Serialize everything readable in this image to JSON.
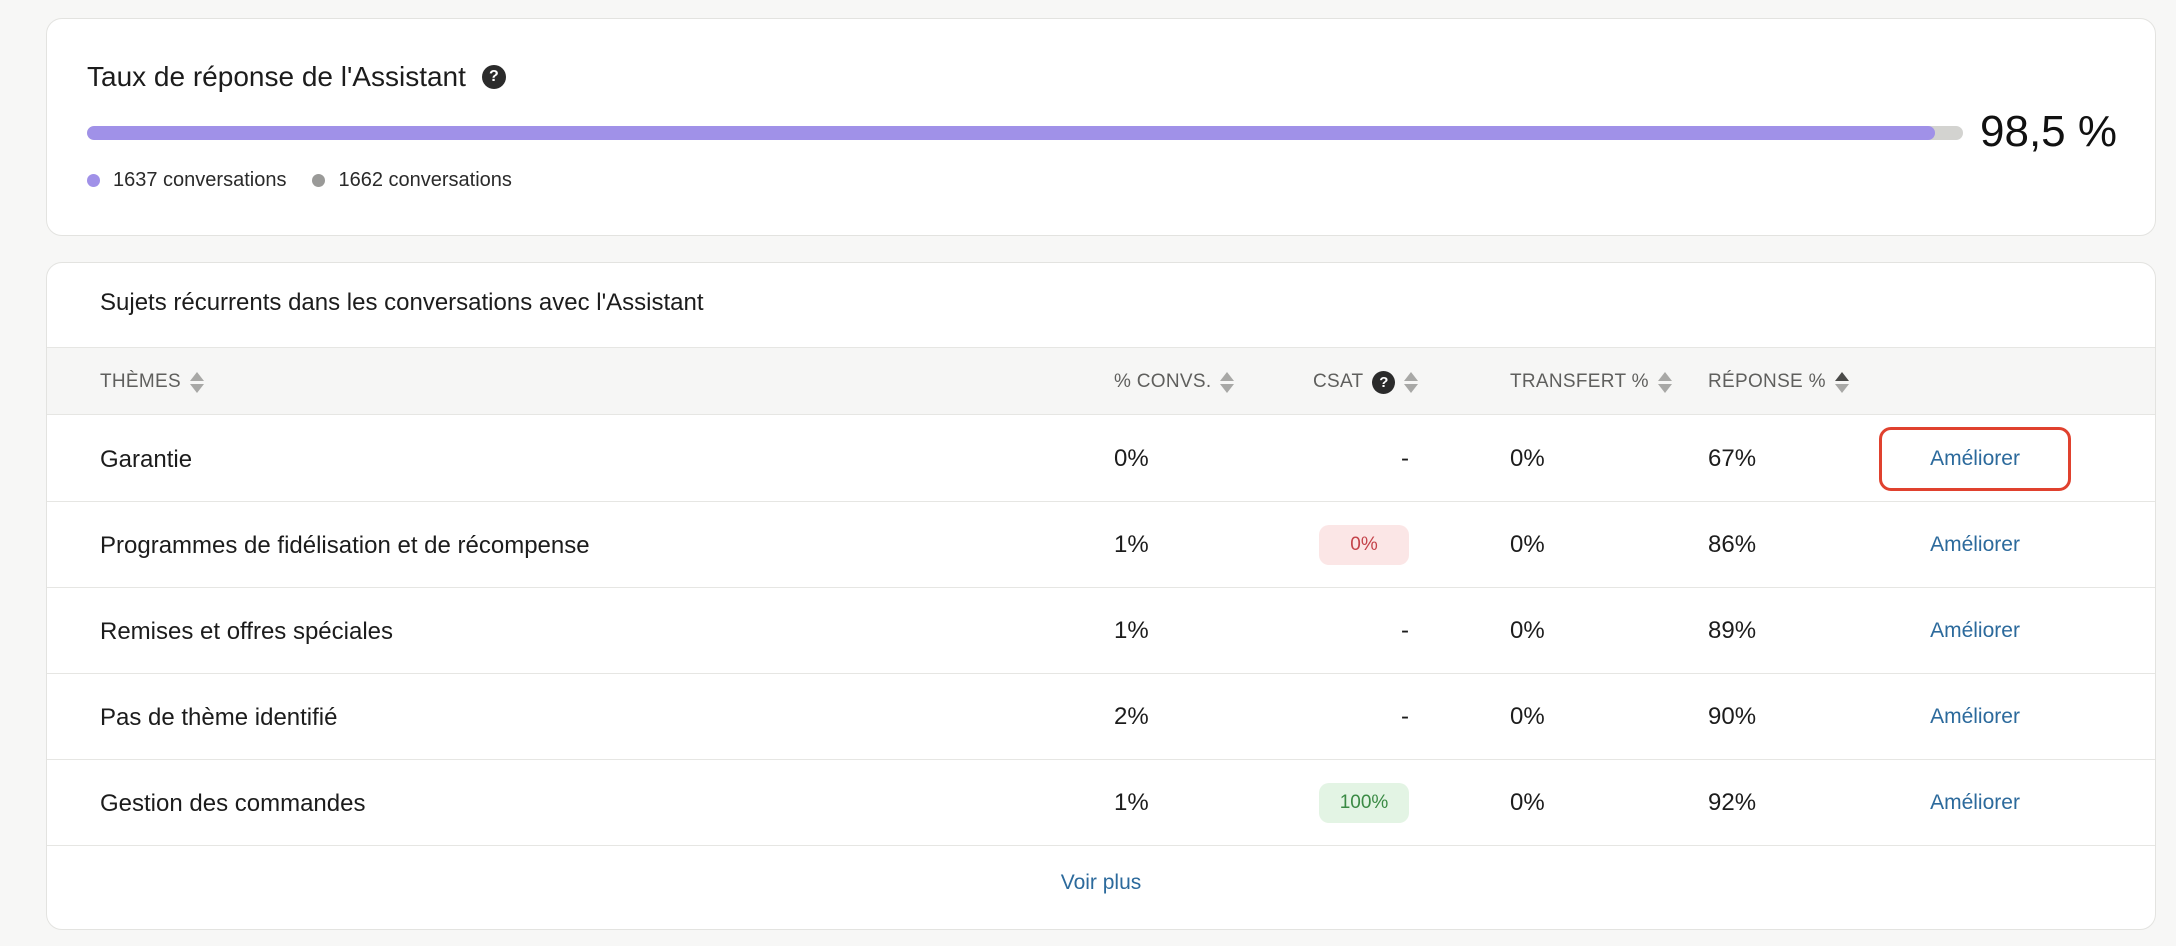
{
  "rate_card": {
    "title": "Taux de réponse de l'Assistant",
    "help_symbol": "?",
    "value": "98,5 %",
    "progress_fraction": 0.985,
    "legend": [
      {
        "label": "1637 conversations",
        "color": "#a091e8"
      },
      {
        "label": "1662 conversations",
        "color": "#9a9a98"
      }
    ]
  },
  "topics_card": {
    "title": "Sujets récurrents dans les conversations avec l'Assistant",
    "columns": {
      "themes": "THÈMES",
      "convs": "% CONVS.",
      "csat": "CSAT",
      "transfert": "TRANSFERT %",
      "reponse": "RÉPONSE %"
    },
    "rows": [
      {
        "theme": "Garantie",
        "convs": "0%",
        "csat": "-",
        "csat_style": "plain",
        "transfert": "0%",
        "reponse": "67%",
        "action": "Améliorer",
        "highlighted": true
      },
      {
        "theme": "Programmes de fidélisation et de récompense",
        "convs": "1%",
        "csat": "0%",
        "csat_style": "red",
        "transfert": "0%",
        "reponse": "86%",
        "action": "Améliorer",
        "highlighted": false
      },
      {
        "theme": "Remises et offres spéciales",
        "convs": "1%",
        "csat": "-",
        "csat_style": "plain",
        "transfert": "0%",
        "reponse": "89%",
        "action": "Améliorer",
        "highlighted": false
      },
      {
        "theme": "Pas de thème identifié",
        "convs": "2%",
        "csat": "-",
        "csat_style": "plain",
        "transfert": "0%",
        "reponse": "90%",
        "action": "Améliorer",
        "highlighted": false
      },
      {
        "theme": "Gestion des commandes",
        "convs": "1%",
        "csat": "100%",
        "csat_style": "green",
        "transfert": "0%",
        "reponse": "92%",
        "action": "Améliorer",
        "highlighted": false
      }
    ],
    "see_more": "Voir plus"
  }
}
